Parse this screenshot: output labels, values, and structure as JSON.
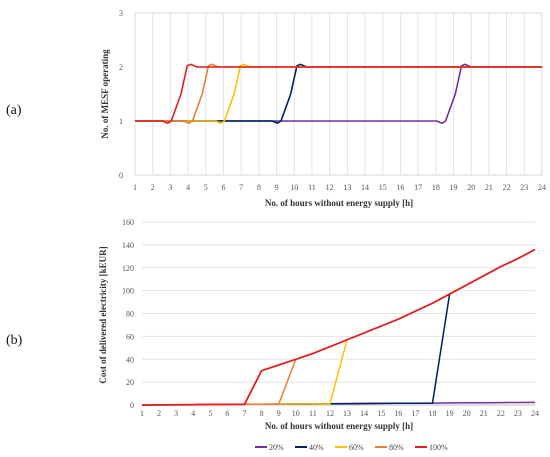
{
  "chart_data": [
    {
      "type": "line",
      "panel_label": "(a)",
      "xlabel": "No. of hours without energy supply [h]",
      "ylabel": "No. of MESF operating",
      "x": [
        1,
        2,
        3,
        4,
        5,
        6,
        7,
        8,
        9,
        10,
        11,
        12,
        13,
        14,
        15,
        16,
        17,
        18,
        19,
        20,
        21,
        22,
        23,
        24
      ],
      "xlim": [
        1,
        24
      ],
      "ylim": [
        0,
        3
      ],
      "yticks": [
        0,
        1,
        2,
        3
      ],
      "grid": "vertical",
      "series": [
        {
          "name": "20%",
          "color": "#7030a0",
          "step_at": 19.1
        },
        {
          "name": "40%",
          "color": "#002060",
          "step_at": 9.8
        },
        {
          "name": "60%",
          "color": "#ffc000",
          "step_at": 6.6
        },
        {
          "name": "80%",
          "color": "#ed7d31",
          "step_at": 4.8
        },
        {
          "name": "100%",
          "color": "#e02020",
          "step_at": 3.6
        }
      ]
    },
    {
      "type": "line",
      "panel_label": "(b)",
      "xlabel": "No. of hours without energy supply [h]",
      "ylabel": "Cost of delivered electricity [kEUR]",
      "x": [
        1,
        2,
        3,
        4,
        5,
        6,
        7,
        8,
        9,
        10,
        11,
        12,
        13,
        14,
        15,
        16,
        17,
        18,
        19,
        20,
        21,
        22,
        23,
        24
      ],
      "xlim": [
        1,
        24
      ],
      "ylim": [
        0,
        160
      ],
      "yticks": [
        0,
        20,
        40,
        60,
        80,
        100,
        120,
        140,
        160
      ],
      "grid": "horizontal",
      "series": [
        {
          "name": "20%",
          "color": "#7030a0",
          "points": [
            [
              1,
              0
            ],
            [
              2,
              0.1
            ],
            [
              3,
              0.2
            ],
            [
              4,
              0.3
            ],
            [
              5,
              0.4
            ],
            [
              6,
              0.5
            ],
            [
              7,
              0.6
            ],
            [
              8,
              0.7
            ],
            [
              9,
              0.8
            ],
            [
              10,
              0.9
            ],
            [
              11,
              1.0
            ],
            [
              12,
              1.1
            ],
            [
              13,
              1.2
            ],
            [
              14,
              1.3
            ],
            [
              15,
              1.4
            ],
            [
              16,
              1.5
            ],
            [
              17,
              1.6
            ],
            [
              18,
              1.7
            ],
            [
              19,
              1.8
            ],
            [
              20,
              1.9
            ],
            [
              21,
              2.0
            ],
            [
              22,
              2.1
            ],
            [
              23,
              2.2
            ],
            [
              24,
              2.3
            ]
          ]
        },
        {
          "name": "40%",
          "color": "#002060",
          "points": [
            [
              1,
              0
            ],
            [
              2,
              0.1
            ],
            [
              3,
              0.2
            ],
            [
              4,
              0.3
            ],
            [
              5,
              0.4
            ],
            [
              6,
              0.5
            ],
            [
              7,
              0.6
            ],
            [
              8,
              0.7
            ],
            [
              9,
              0.8
            ],
            [
              10,
              0.9
            ],
            [
              11,
              1.0
            ],
            [
              12,
              1.1
            ],
            [
              13,
              1.2
            ],
            [
              14,
              1.3
            ],
            [
              15,
              1.4
            ],
            [
              16,
              1.5
            ],
            [
              17,
              1.6
            ],
            [
              18,
              1.7
            ],
            [
              19,
              97
            ]
          ]
        },
        {
          "name": "60%",
          "color": "#ffc000",
          "points": [
            [
              1,
              0
            ],
            [
              2,
              0.1
            ],
            [
              3,
              0.2
            ],
            [
              4,
              0.3
            ],
            [
              5,
              0.4
            ],
            [
              6,
              0.5
            ],
            [
              7,
              0.6
            ],
            [
              8,
              0.7
            ],
            [
              9,
              0.8
            ],
            [
              10,
              0.9
            ],
            [
              11,
              1.0
            ],
            [
              12,
              1.1
            ],
            [
              13,
              57
            ]
          ]
        },
        {
          "name": "80%",
          "color": "#ed7d31",
          "points": [
            [
              1,
              0
            ],
            [
              2,
              0.1
            ],
            [
              3,
              0.2
            ],
            [
              4,
              0.3
            ],
            [
              5,
              0.4
            ],
            [
              6,
              0.5
            ],
            [
              7,
              0.6
            ],
            [
              8,
              0.7
            ],
            [
              9,
              0.8
            ],
            [
              10,
              40
            ]
          ]
        },
        {
          "name": "100%",
          "color": "#e02020",
          "points": [
            [
              1,
              0
            ],
            [
              2,
              0.1
            ],
            [
              3,
              0.2
            ],
            [
              4,
              0.3
            ],
            [
              5,
              0.4
            ],
            [
              6,
              0.5
            ],
            [
              7,
              0.6
            ],
            [
              8,
              30
            ],
            [
              9,
              35
            ],
            [
              10,
              40
            ],
            [
              11,
              45
            ],
            [
              12,
              51
            ],
            [
              13,
              57
            ],
            [
              14,
              63
            ],
            [
              15,
              69
            ],
            [
              16,
              75
            ],
            [
              17,
              82
            ],
            [
              18,
              89
            ],
            [
              19,
              97
            ],
            [
              20,
              105
            ],
            [
              21,
              113
            ],
            [
              22,
              121
            ],
            [
              23,
              128
            ],
            [
              24,
              136
            ]
          ]
        }
      ],
      "legend": {
        "placement": "bottom",
        "entries": [
          "20%",
          "40%",
          "60%",
          "80%",
          "100%"
        ]
      }
    }
  ]
}
